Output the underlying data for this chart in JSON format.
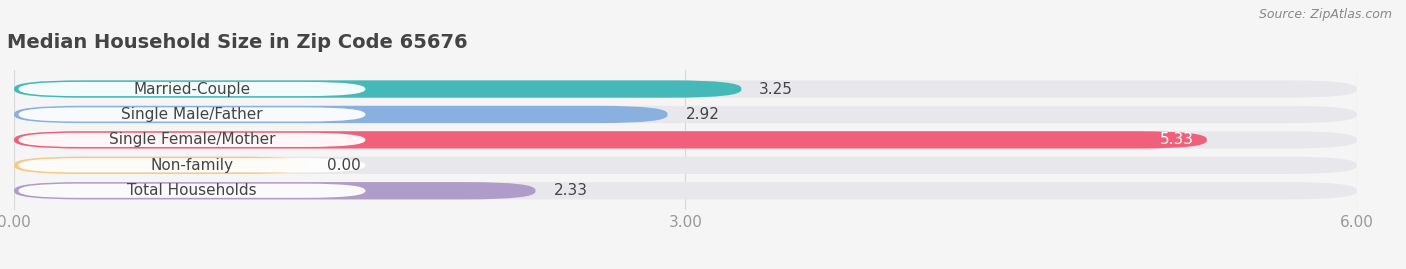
{
  "title": "Median Household Size in Zip Code 65676",
  "source": "Source: ZipAtlas.com",
  "categories": [
    "Married-Couple",
    "Single Male/Father",
    "Single Female/Mother",
    "Non-family",
    "Total Households"
  ],
  "values": [
    3.25,
    2.92,
    5.33,
    0.0,
    2.33
  ],
  "bar_colors": [
    "#45b8b8",
    "#8ab0e0",
    "#f0607a",
    "#f5c98a",
    "#b09cc8"
  ],
  "value_label_inside": [
    false,
    false,
    true,
    false,
    false
  ],
  "xlim": [
    0,
    6.0
  ],
  "xticks": [
    0.0,
    3.0,
    6.0
  ],
  "xtick_labels": [
    "0.00",
    "3.00",
    "6.00"
  ],
  "bar_height": 0.68,
  "bar_gap": 0.32,
  "title_fontsize": 14,
  "tick_fontsize": 11,
  "label_fontsize": 11,
  "value_fontsize": 11,
  "background_color": "#f5f5f5",
  "bar_bg_color": "#e8e8ec",
  "label_box_color": "#ffffff",
  "title_color": "#444444",
  "tick_color": "#999999",
  "text_color": "#444444",
  "source_color": "#888888",
  "gridline_color": "#d8d8d8"
}
